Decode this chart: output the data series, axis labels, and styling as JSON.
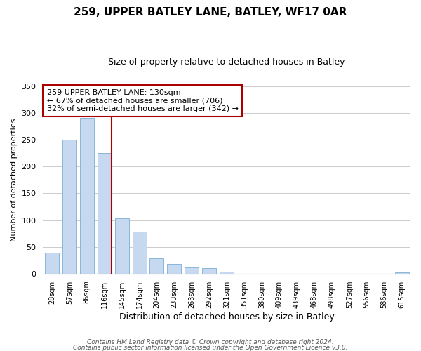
{
  "title": "259, UPPER BATLEY LANE, BATLEY, WF17 0AR",
  "subtitle": "Size of property relative to detached houses in Batley",
  "xlabel": "Distribution of detached houses by size in Batley",
  "ylabel": "Number of detached properties",
  "categories": [
    "28sqm",
    "57sqm",
    "86sqm",
    "116sqm",
    "145sqm",
    "174sqm",
    "204sqm",
    "233sqm",
    "263sqm",
    "292sqm",
    "321sqm",
    "351sqm",
    "380sqm",
    "409sqm",
    "439sqm",
    "468sqm",
    "498sqm",
    "527sqm",
    "556sqm",
    "586sqm",
    "615sqm"
  ],
  "values": [
    39,
    250,
    291,
    225,
    103,
    78,
    29,
    18,
    11,
    10,
    4,
    0,
    0,
    0,
    0,
    0,
    0,
    0,
    0,
    0,
    2
  ],
  "bar_color": "#c6d9f0",
  "bar_edge_color": "#7bafd4",
  "marker_index": 3,
  "marker_color": "#aa0000",
  "annotation_title": "259 UPPER BATLEY LANE: 130sqm",
  "annotation_line1": "← 67% of detached houses are smaller (706)",
  "annotation_line2": "32% of semi-detached houses are larger (342) →",
  "ylim": [
    0,
    350
  ],
  "yticks": [
    0,
    50,
    100,
    150,
    200,
    250,
    300,
    350
  ],
  "footer1": "Contains HM Land Registry data © Crown copyright and database right 2024.",
  "footer2": "Contains public sector information licensed under the Open Government Licence v3.0.",
  "bg_color": "#ffffff",
  "grid_color": "#cccccc"
}
